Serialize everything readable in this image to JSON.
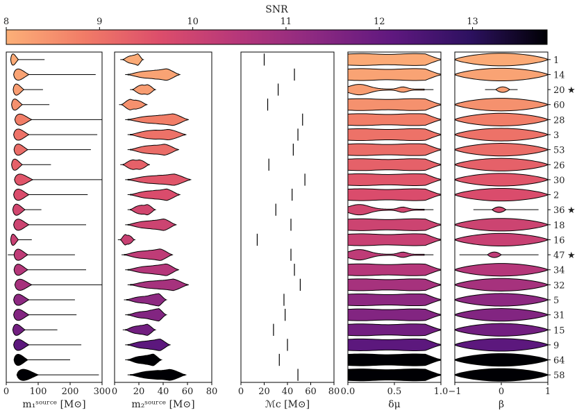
{
  "chart_data": {
    "type": "violin",
    "colorbar": {
      "label": "SNR",
      "range": [
        8,
        13.8
      ],
      "ticks": [
        8,
        9,
        10,
        11,
        12,
        13
      ],
      "tick_labels": [
        "8",
        "9",
        "10",
        "11",
        "12",
        "13"
      ],
      "colors": [
        "#fcb078",
        "#f17c67",
        "#dc4d6b",
        "#b6377a",
        "#8c2981",
        "#5f187f",
        "#2d1160",
        "#000004"
      ]
    },
    "events": [
      {
        "label": "1",
        "snr": 8.1,
        "star": false
      },
      {
        "label": "14",
        "snr": 8.2,
        "star": false
      },
      {
        "label": "20",
        "snr": 8.3,
        "star": true
      },
      {
        "label": "60",
        "snr": 8.5,
        "star": false
      },
      {
        "label": "28",
        "snr": 8.8,
        "star": false
      },
      {
        "label": "3",
        "snr": 9.0,
        "star": false
      },
      {
        "label": "53",
        "snr": 9.1,
        "star": false
      },
      {
        "label": "26",
        "snr": 9.3,
        "star": false
      },
      {
        "label": "30",
        "snr": 9.5,
        "star": false
      },
      {
        "label": "2",
        "snr": 9.7,
        "star": false
      },
      {
        "label": "36",
        "snr": 9.9,
        "star": true
      },
      {
        "label": "18",
        "snr": 10.0,
        "star": false
      },
      {
        "label": "16",
        "snr": 10.1,
        "star": false
      },
      {
        "label": "47",
        "snr": 10.3,
        "star": true
      },
      {
        "label": "34",
        "snr": 10.5,
        "star": false
      },
      {
        "label": "32",
        "snr": 10.8,
        "star": false
      },
      {
        "label": "5",
        "snr": 11.3,
        "star": false
      },
      {
        "label": "31",
        "snr": 11.5,
        "star": false
      },
      {
        "label": "15",
        "snr": 11.8,
        "star": false
      },
      {
        "label": "9",
        "snr": 12.2,
        "star": false
      },
      {
        "label": "64",
        "snr": 13.8,
        "star": false
      },
      {
        "label": "58",
        "snr": 13.8,
        "star": false
      }
    ],
    "star_symbol": "★",
    "panels": [
      {
        "key": "m1",
        "xlabel": "m₁ˢᵒᵘʳᶜᵉ [M⊙]",
        "xlim": [
          0,
          300
        ],
        "ticks": [
          0,
          100,
          200,
          300
        ],
        "tick_labels": [
          "0",
          "100",
          "200",
          "300"
        ],
        "kind": "skewed",
        "medians": [
          20,
          35,
          30,
          25,
          40,
          35,
          35,
          25,
          40,
          35,
          30,
          35,
          20,
          35,
          35,
          40,
          35,
          35,
          30,
          35,
          35,
          50
        ],
        "widths": [
          10,
          20,
          14,
          14,
          22,
          20,
          18,
          14,
          24,
          20,
          16,
          20,
          10,
          18,
          18,
          22,
          20,
          20,
          16,
          20,
          18,
          28
        ],
        "tail_min": [
          15,
          25,
          25,
          20,
          30,
          30,
          28,
          20,
          30,
          30,
          25,
          30,
          15,
          5,
          30,
          30,
          25,
          25,
          20,
          25,
          25,
          40
        ],
        "tail_max": [
          120,
          280,
          115,
          135,
          300,
          285,
          265,
          140,
          300,
          255,
          110,
          250,
          80,
          215,
          250,
          300,
          215,
          220,
          160,
          235,
          200,
          290
        ]
      },
      {
        "key": "m2",
        "xlabel": "m₂ˢᵒᵘʳᶜᵉ [M⊙]",
        "xlim": [
          0,
          80
        ],
        "ticks": [
          0,
          20,
          40,
          60,
          80
        ],
        "tick_labels": [
          "0",
          "20",
          "40",
          "60",
          "80"
        ],
        "kind": "broad",
        "ranges": [
          [
            7,
            23
          ],
          [
            11,
            53
          ],
          [
            15,
            33
          ],
          [
            6,
            26
          ],
          [
            11,
            60
          ],
          [
            13,
            58
          ],
          [
            13,
            52
          ],
          [
            7,
            28
          ],
          [
            11,
            62
          ],
          [
            13,
            53
          ],
          [
            13,
            33
          ],
          [
            11,
            50
          ],
          [
            5,
            16
          ],
          [
            8,
            47
          ],
          [
            11,
            52
          ],
          [
            13,
            60
          ],
          [
            10,
            42
          ],
          [
            11,
            42
          ],
          [
            9,
            33
          ],
          [
            11,
            45
          ],
          [
            11,
            38
          ],
          [
            13,
            58
          ]
        ],
        "peaks": [
          18,
          40,
          25,
          15,
          45,
          40,
          38,
          18,
          45,
          40,
          25,
          38,
          10,
          35,
          40,
          45,
          35,
          35,
          25,
          35,
          30,
          42
        ]
      },
      {
        "key": "mc",
        "xlabel": "ℳc [M⊙]",
        "xlim": [
          0,
          80
        ],
        "ticks": [
          0,
          20,
          40,
          60,
          80
        ],
        "tick_labels": [
          "0",
          "20",
          "40",
          "60",
          "80"
        ],
        "kind": "line",
        "values": [
          20,
          46,
          32,
          23,
          53,
          49,
          45,
          24,
          55,
          44,
          30,
          43,
          14,
          43,
          46,
          51,
          37,
          38,
          28,
          40,
          33,
          49
        ]
      },
      {
        "key": "dmu",
        "xlabel": "δμ",
        "xlim": [
          0,
          1
        ],
        "ticks": [
          0,
          0.5,
          1
        ],
        "tick_labels": [
          "0.0",
          "0.5",
          "1.0"
        ],
        "kind": "flat",
        "narrow": [
          false,
          false,
          true,
          false,
          false,
          false,
          false,
          false,
          false,
          false,
          true,
          false,
          false,
          true,
          false,
          false,
          false,
          false,
          false,
          false,
          false,
          false
        ]
      },
      {
        "key": "beta",
        "xlabel": "β",
        "xlim": [
          -1,
          1
        ],
        "ticks": [
          -1,
          0,
          1
        ],
        "tick_labels": [
          "−1",
          "0",
          "1"
        ],
        "kind": "lens",
        "narrow": [
          false,
          false,
          true,
          false,
          false,
          false,
          false,
          false,
          false,
          false,
          true,
          false,
          false,
          true,
          false,
          false,
          false,
          false,
          false,
          false,
          false,
          false
        ],
        "narrow_center": [
          0,
          0,
          0.03,
          0,
          0,
          0,
          0,
          0,
          0,
          0,
          -0.05,
          0,
          0,
          -0.15,
          0,
          0,
          0,
          0,
          0,
          0,
          0,
          0
        ],
        "narrow_whisker": [
          [
            0,
            0
          ],
          [
            0,
            0
          ],
          [
            -0.35,
            0.35
          ],
          [
            0,
            0
          ],
          [
            0,
            0
          ],
          [
            0,
            0
          ],
          [
            0,
            0
          ],
          [
            0,
            0
          ],
          [
            0,
            0
          ],
          [
            0,
            0
          ],
          [
            -0.6,
            0.8
          ],
          [
            0,
            0
          ],
          [
            0,
            0
          ],
          [
            -0.9,
            0.8
          ],
          [
            0,
            0
          ],
          [
            0,
            0
          ],
          [
            0,
            0
          ],
          [
            0,
            0
          ],
          [
            0,
            0
          ],
          [
            0,
            0
          ],
          [
            0,
            0
          ],
          [
            0,
            0
          ]
        ]
      }
    ]
  }
}
